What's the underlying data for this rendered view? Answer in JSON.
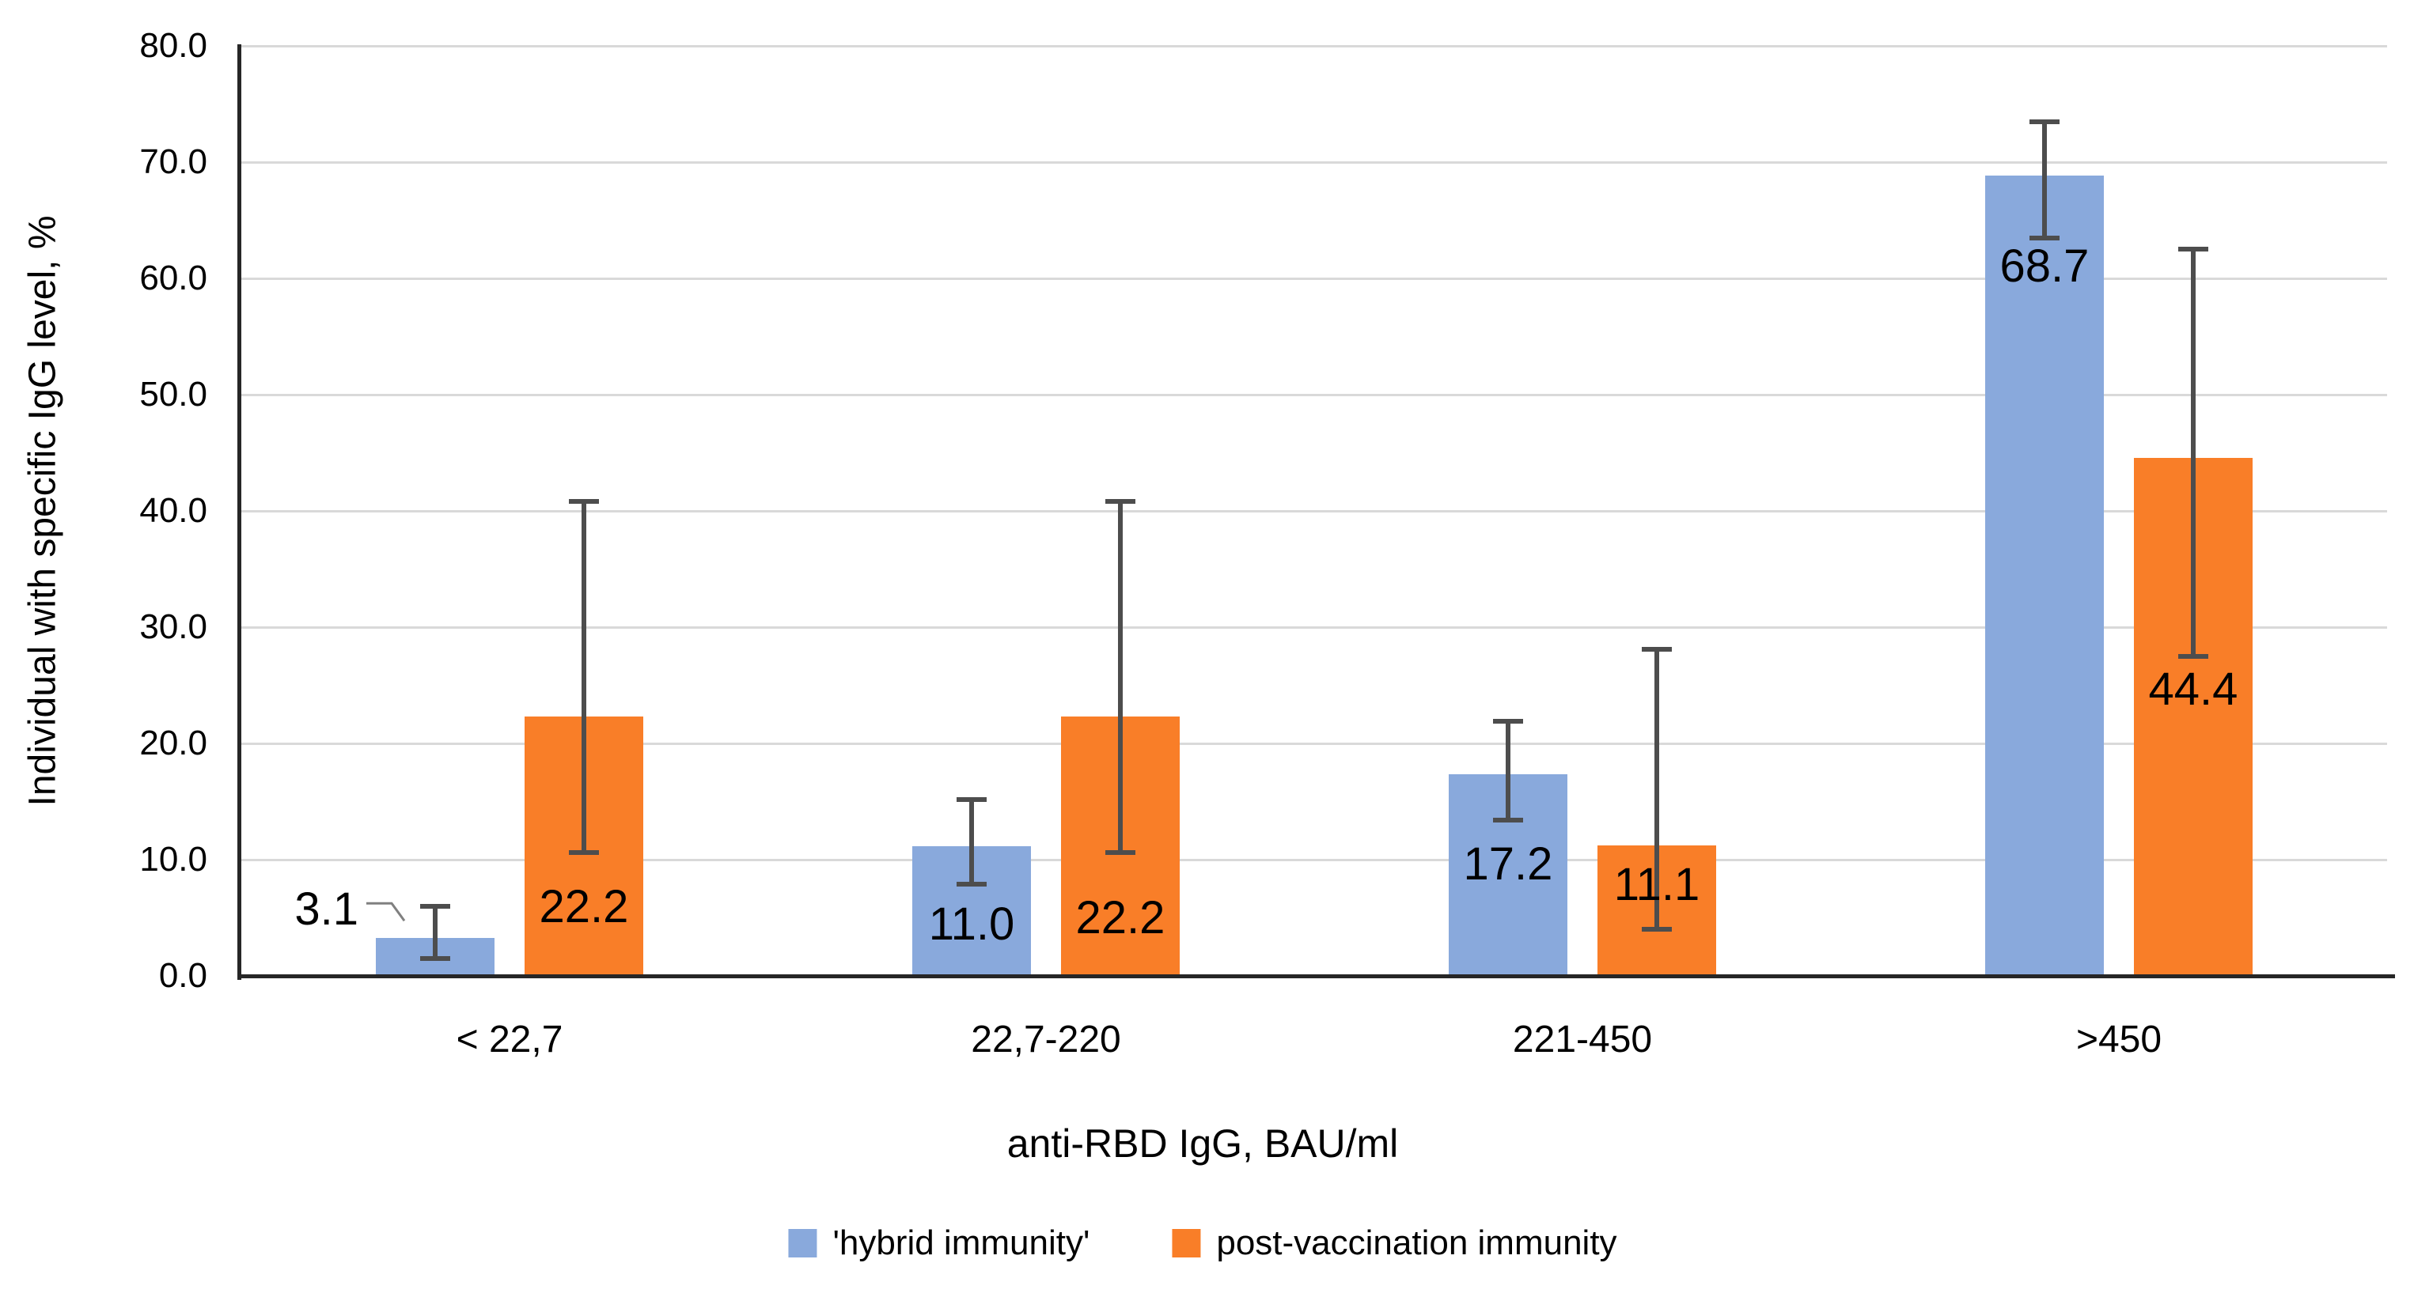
{
  "chart_data": {
    "type": "bar",
    "title": "",
    "categories": [
      "< 22,7",
      "22,7-220",
      "221-450",
      ">450"
    ],
    "series": [
      {
        "name": "'hybrid immunity'",
        "color": "#89A9DC",
        "values": [
          3.1,
          11.0,
          17.2,
          68.7
        ],
        "errors": [
          [
            1.5,
            6.0
          ],
          [
            7.9,
            15.2
          ],
          [
            13.4,
            21.9
          ],
          [
            63.5,
            73.5
          ]
        ],
        "label_center_units": [
          5.7,
          4.4,
          9.6,
          61.0
        ],
        "label_outside_left": [
          true,
          false,
          false,
          false
        ]
      },
      {
        "name": "post-vaccination immunity",
        "color": "#F97E28",
        "values": [
          22.2,
          22.2,
          11.1,
          44.4
        ],
        "errors": [
          [
            10.6,
            40.8
          ],
          [
            10.6,
            40.8
          ],
          [
            4.0,
            28.1
          ],
          [
            27.5,
            62.5
          ]
        ],
        "label_center_units": [
          5.9,
          5.0,
          7.8,
          24.6
        ],
        "label_outside_left": [
          false,
          false,
          false,
          false
        ]
      }
    ],
    "xlabel": "anti-RBD IgG, BAU/ml",
    "ylabel": "Individual with specific IgG level, %",
    "ylim": [
      0,
      80
    ],
    "ytick_step": 10,
    "ytick_labels": [
      "0.0",
      "10.0",
      "20.0",
      "30.0",
      "40.0",
      "50.0",
      "60.0",
      "70.0",
      "80.0"
    ],
    "grid": true,
    "legend_position": "bottom",
    "colors": {
      "gridline": "#D9D9D9",
      "axis": "#262626",
      "error_bar": "#4D4D4D",
      "data_label": "#000000",
      "leader_line": "#808080",
      "background": "#FFFFFF"
    }
  }
}
